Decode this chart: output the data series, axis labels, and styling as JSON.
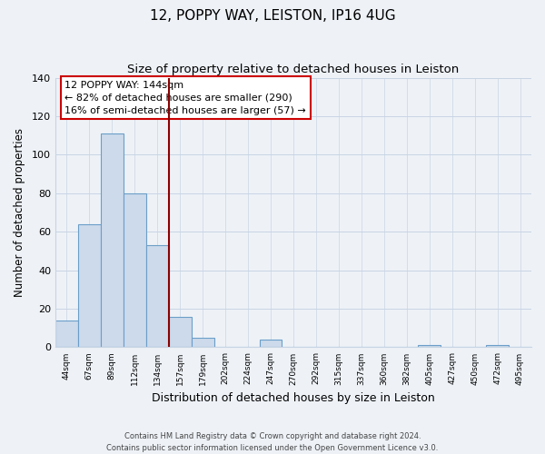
{
  "title": "12, POPPY WAY, LEISTON, IP16 4UG",
  "subtitle": "Size of property relative to detached houses in Leiston",
  "xlabel": "Distribution of detached houses by size in Leiston",
  "ylabel": "Number of detached properties",
  "bar_labels": [
    "44sqm",
    "67sqm",
    "89sqm",
    "112sqm",
    "134sqm",
    "157sqm",
    "179sqm",
    "202sqm",
    "224sqm",
    "247sqm",
    "270sqm",
    "292sqm",
    "315sqm",
    "337sqm",
    "360sqm",
    "382sqm",
    "405sqm",
    "427sqm",
    "450sqm",
    "472sqm",
    "495sqm"
  ],
  "bar_values": [
    14,
    64,
    111,
    80,
    53,
    16,
    5,
    0,
    0,
    4,
    0,
    0,
    0,
    0,
    0,
    0,
    1,
    0,
    0,
    1,
    0
  ],
  "bar_color": "#ccdaeb",
  "bar_edge_color": "#6b9ec8",
  "ylim": [
    0,
    140
  ],
  "yticks": [
    0,
    20,
    40,
    60,
    80,
    100,
    120,
    140
  ],
  "property_line_x": 5.0,
  "property_line_color": "#8b0000",
  "annotation_text": "12 POPPY WAY: 144sqm\n← 82% of detached houses are smaller (290)\n16% of semi-detached houses are larger (57) →",
  "annotation_box_color": "#ffffff",
  "annotation_box_edge_color": "#cc0000",
  "footer_line1": "Contains HM Land Registry data © Crown copyright and database right 2024.",
  "footer_line2": "Contains public sector information licensed under the Open Government Licence v3.0.",
  "bg_color": "#eef2f7",
  "plot_bg_color": "#eef2f7",
  "grid_color": "#c8d4e4",
  "title_fontsize": 11,
  "subtitle_fontsize": 9.5
}
